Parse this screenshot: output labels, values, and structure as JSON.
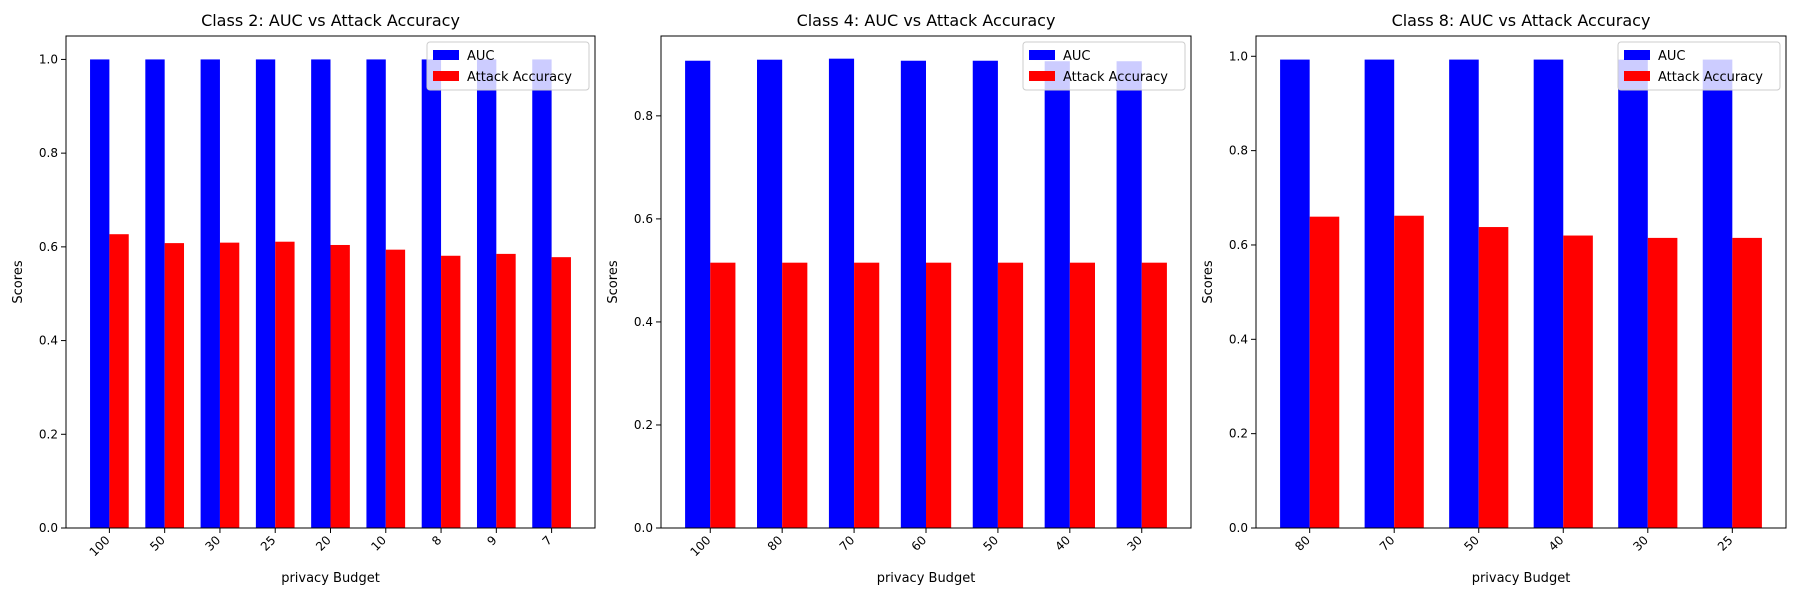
{
  "chart_data": [
    {
      "type": "bar",
      "title": "Class 2: AUC vs Attack Accuracy",
      "xlabel": "privacy Budget",
      "ylabel": "Scores",
      "categories": [
        "100",
        "50",
        "30",
        "25",
        "20",
        "10",
        "8",
        "9",
        "7"
      ],
      "series": [
        {
          "name": "AUC",
          "color": "#0000ff",
          "values": [
            1.0,
            1.0,
            1.0,
            1.0,
            1.0,
            1.0,
            1.0,
            1.0,
            1.0
          ]
        },
        {
          "name": "Attack Accuracy",
          "color": "#ff0000",
          "values": [
            0.627,
            0.608,
            0.609,
            0.611,
            0.604,
            0.594,
            0.581,
            0.585,
            0.578
          ]
        }
      ],
      "ylim": [
        0,
        1.05
      ],
      "yticks": [
        0.0,
        0.2,
        0.4,
        0.6,
        0.8,
        1.0
      ],
      "ytick_labels": [
        "0.0",
        "0.2",
        "0.4",
        "0.6",
        "0.8",
        "1.0"
      ],
      "legend": "top-right",
      "grid": false
    },
    {
      "type": "bar",
      "title": "Class 4: AUC vs Attack Accuracy",
      "xlabel": "privacy Budget",
      "ylabel": "Scores",
      "categories": [
        "100",
        "80",
        "70",
        "60",
        "50",
        "40",
        "30"
      ],
      "series": [
        {
          "name": "AUC",
          "color": "#0000ff",
          "values": [
            0.907,
            0.909,
            0.911,
            0.907,
            0.907,
            0.906,
            0.906
          ]
        },
        {
          "name": "Attack Accuracy",
          "color": "#ff0000",
          "values": [
            0.515,
            0.515,
            0.515,
            0.515,
            0.515,
            0.515,
            0.515
          ]
        }
      ],
      "ylim": [
        0,
        0.955
      ],
      "yticks": [
        0.0,
        0.2,
        0.4,
        0.6,
        0.8
      ],
      "ytick_labels": [
        "0.0",
        "0.2",
        "0.4",
        "0.6",
        "0.8"
      ],
      "legend": "top-right",
      "grid": false
    },
    {
      "type": "bar",
      "title": "Class 8: AUC vs Attack Accuracy",
      "xlabel": "privacy Budget",
      "ylabel": "Scores",
      "categories": [
        "80",
        "70",
        "50",
        "40",
        "30",
        "25"
      ],
      "series": [
        {
          "name": "AUC",
          "color": "#0000ff",
          "values": [
            0.993,
            0.993,
            0.993,
            0.993,
            0.993,
            0.993
          ]
        },
        {
          "name": "Attack Accuracy",
          "color": "#ff0000",
          "values": [
            0.66,
            0.662,
            0.638,
            0.62,
            0.615,
            0.615
          ]
        }
      ],
      "ylim": [
        0,
        1.043
      ],
      "yticks": [
        0.0,
        0.2,
        0.4,
        0.6,
        0.8,
        1.0
      ],
      "ytick_labels": [
        "0.0",
        "0.2",
        "0.4",
        "0.6",
        "0.8",
        "1.0"
      ],
      "legend": "top-right",
      "grid": false
    }
  ]
}
